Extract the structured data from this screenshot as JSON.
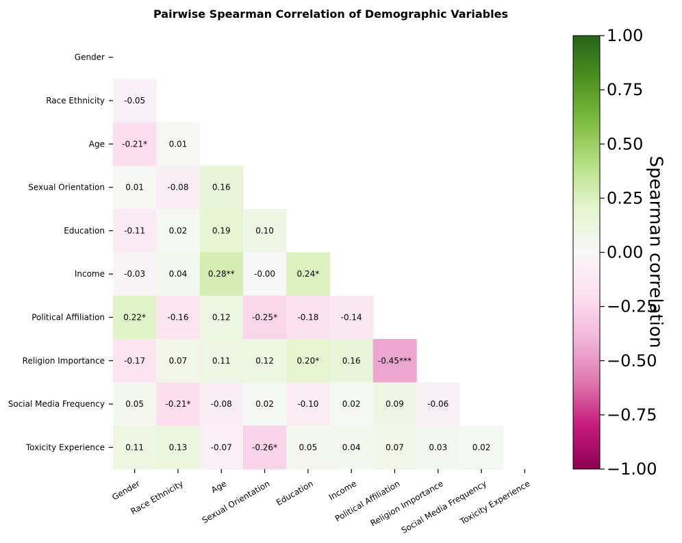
{
  "chart_data": {
    "type": "heatmap",
    "title": "Pairwise Spearman Correlation of Demographic Variables",
    "variables": [
      "Gender",
      "Race Ethnicity",
      "Age",
      "Sexual Orientation",
      "Education",
      "Income",
      "Political Affiliation",
      "Religion Importance",
      "Social Media Frequency",
      "Toxicity Experience"
    ],
    "lower_triangle": [
      [],
      [
        {
          "value": -0.05,
          "label": "-0.05"
        }
      ],
      [
        {
          "value": -0.21,
          "label": "-0.21*"
        },
        {
          "value": 0.01,
          "label": "0.01"
        }
      ],
      [
        {
          "value": 0.01,
          "label": "0.01"
        },
        {
          "value": -0.08,
          "label": "-0.08"
        },
        {
          "value": 0.16,
          "label": "0.16"
        }
      ],
      [
        {
          "value": -0.11,
          "label": "-0.11"
        },
        {
          "value": 0.02,
          "label": "0.02"
        },
        {
          "value": 0.19,
          "label": "0.19"
        },
        {
          "value": 0.1,
          "label": "0.10"
        }
      ],
      [
        {
          "value": -0.03,
          "label": "-0.03"
        },
        {
          "value": 0.04,
          "label": "0.04"
        },
        {
          "value": 0.28,
          "label": "0.28**"
        },
        {
          "value": -0.0,
          "label": "-0.00"
        },
        {
          "value": 0.24,
          "label": "0.24*"
        }
      ],
      [
        {
          "value": 0.22,
          "label": "0.22*"
        },
        {
          "value": -0.16,
          "label": "-0.16"
        },
        {
          "value": 0.12,
          "label": "0.12"
        },
        {
          "value": -0.25,
          "label": "-0.25*"
        },
        {
          "value": -0.18,
          "label": "-0.18"
        },
        {
          "value": -0.14,
          "label": "-0.14"
        }
      ],
      [
        {
          "value": -0.17,
          "label": "-0.17"
        },
        {
          "value": 0.07,
          "label": "0.07"
        },
        {
          "value": 0.11,
          "label": "0.11"
        },
        {
          "value": 0.12,
          "label": "0.12"
        },
        {
          "value": 0.2,
          "label": "0.20*"
        },
        {
          "value": 0.16,
          "label": "0.16"
        },
        {
          "value": -0.45,
          "label": "-0.45***"
        }
      ],
      [
        {
          "value": 0.05,
          "label": "0.05"
        },
        {
          "value": -0.21,
          "label": "-0.21*"
        },
        {
          "value": -0.08,
          "label": "-0.08"
        },
        {
          "value": 0.02,
          "label": "0.02"
        },
        {
          "value": -0.1,
          "label": "-0.10"
        },
        {
          "value": 0.02,
          "label": "0.02"
        },
        {
          "value": 0.09,
          "label": "0.09"
        },
        {
          "value": -0.06,
          "label": "-0.06"
        }
      ],
      [
        {
          "value": 0.11,
          "label": "0.11"
        },
        {
          "value": 0.13,
          "label": "0.13"
        },
        {
          "value": -0.07,
          "label": "-0.07"
        },
        {
          "value": -0.26,
          "label": "-0.26*"
        },
        {
          "value": 0.05,
          "label": "0.05"
        },
        {
          "value": 0.04,
          "label": "0.04"
        },
        {
          "value": 0.07,
          "label": "0.07"
        },
        {
          "value": 0.03,
          "label": "0.03"
        },
        {
          "value": 0.02,
          "label": "0.02"
        }
      ]
    ],
    "colorbar": {
      "label": "Spearman correlation",
      "range": [
        -1.0,
        1.0
      ],
      "ticks": [
        1.0,
        0.75,
        0.5,
        0.25,
        0.0,
        -0.25,
        -0.5,
        -0.75,
        -1.0
      ],
      "tick_labels": [
        "1.00",
        "0.75",
        "0.50",
        "0.25",
        "0.00",
        "−0.25",
        "−0.50",
        "−0.75",
        "−1.00"
      ],
      "colormap": "PiYG",
      "color_stops": [
        "#8e0152",
        "#c51b7d",
        "#de77ae",
        "#f1b6da",
        "#fde0ef",
        "#f7f7f7",
        "#e6f5d0",
        "#b8e186",
        "#7fbc41",
        "#4d9221",
        "#276419"
      ]
    }
  }
}
